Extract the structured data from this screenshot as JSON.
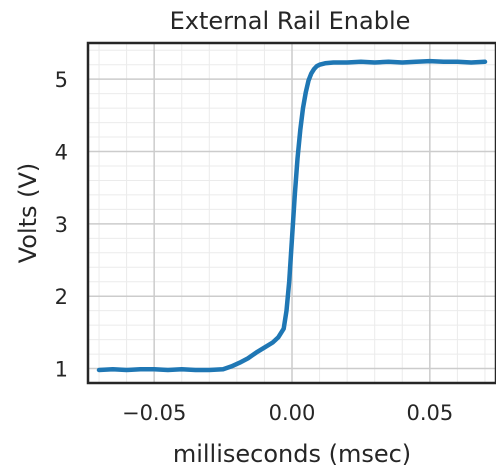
{
  "chart_data": {
    "type": "line",
    "title": "External Rail Enable",
    "xlabel": "milliseconds (msec)",
    "ylabel": "Volts (V)",
    "xlim": [
      -0.074,
      0.074
    ],
    "ylim": [
      0.8,
      5.5
    ],
    "xticks": [
      -0.05,
      0.0,
      0.05
    ],
    "xtick_labels": [
      "−0.05",
      "0.00",
      "0.05"
    ],
    "yticks": [
      1,
      2,
      3,
      4,
      5
    ],
    "ytick_labels": [
      "1",
      "2",
      "3",
      "4",
      "5"
    ],
    "grid": "major and minor",
    "line_color": "#1f77b4",
    "series": [
      {
        "x": [
          -0.07,
          -0.065,
          -0.06,
          -0.055,
          -0.05,
          -0.045,
          -0.04,
          -0.035,
          -0.03,
          -0.025,
          -0.022,
          -0.019,
          -0.016,
          -0.013,
          -0.01,
          -0.007,
          -0.005,
          -0.003,
          -0.002,
          -0.001,
          0.0,
          0.001,
          0.002,
          0.003,
          0.004,
          0.005,
          0.006,
          0.007,
          0.008,
          0.009,
          0.01,
          0.012,
          0.015,
          0.02,
          0.025,
          0.03,
          0.035,
          0.04,
          0.045,
          0.05,
          0.055,
          0.06,
          0.065,
          0.07
        ],
        "y": [
          0.98,
          0.99,
          0.98,
          0.99,
          0.99,
          0.98,
          0.99,
          0.98,
          0.98,
          0.99,
          1.03,
          1.08,
          1.14,
          1.22,
          1.29,
          1.36,
          1.43,
          1.55,
          1.8,
          2.2,
          2.8,
          3.4,
          3.9,
          4.3,
          4.6,
          4.82,
          4.98,
          5.08,
          5.14,
          5.18,
          5.2,
          5.22,
          5.23,
          5.23,
          5.24,
          5.23,
          5.24,
          5.23,
          5.24,
          5.25,
          5.24,
          5.24,
          5.23,
          5.24
        ]
      }
    ]
  }
}
